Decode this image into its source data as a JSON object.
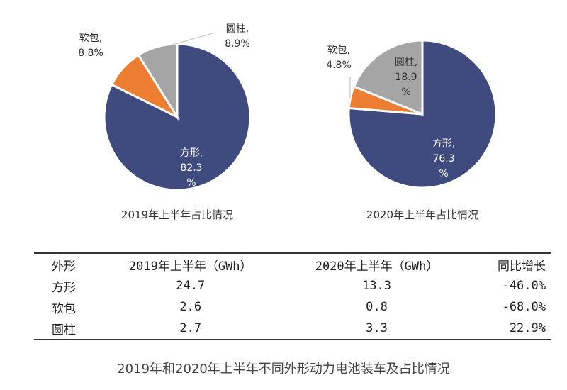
{
  "chart_data": [
    {
      "type": "pie",
      "title": "2019年上半年占比情况",
      "slices": [
        {
          "label": "方形",
          "value": 82.3
        },
        {
          "label": "软包",
          "value": 8.8
        },
        {
          "label": "圆柱",
          "value": 8.9
        }
      ]
    },
    {
      "type": "pie",
      "title": "2020年上半年占比情况",
      "slices": [
        {
          "label": "方形",
          "value": 76.3
        },
        {
          "label": "软包",
          "value": 4.8
        },
        {
          "label": "圆柱",
          "value": 18.9
        }
      ]
    }
  ],
  "colors": {
    "方形": "#3f4a7e",
    "软包": "#ed7d31",
    "圆柱": "#a5a5a5"
  },
  "table": {
    "headers": [
      "外形",
      "2019年上半年（GWh）",
      "2020年上半年（GWh）",
      "同比增长"
    ],
    "rows": [
      [
        "方形",
        "24.7",
        "13.3",
        "-46.0%"
      ],
      [
        "软包",
        "2.6",
        "0.8",
        "-68.0%"
      ],
      [
        "圆柱",
        "2.7",
        "3.3",
        "22.9%"
      ]
    ]
  },
  "caption": "2019年和2020年上半年不同外形动力电池装车及占比情况"
}
